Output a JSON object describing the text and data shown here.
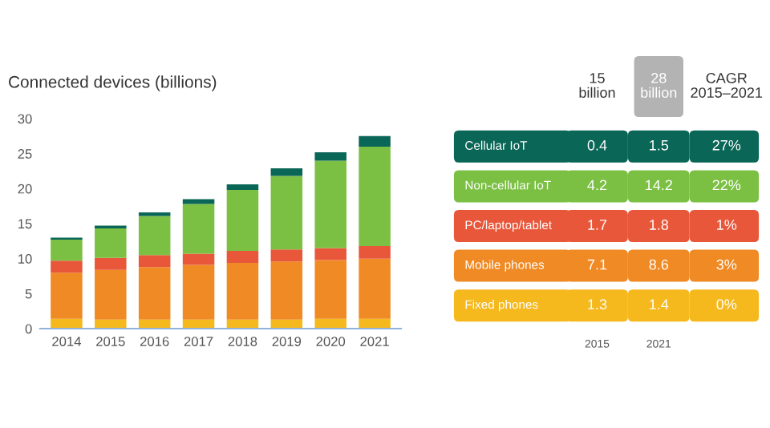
{
  "chart_data": [
    {
      "type": "bar",
      "title": "Connected devices (billions)",
      "stacked": true,
      "categories": [
        "2014",
        "2015",
        "2016",
        "2017",
        "2018",
        "2019",
        "2020",
        "2021"
      ],
      "series": [
        {
          "color": "#f5b91e",
          "values": [
            1.4,
            1.3,
            1.3,
            1.3,
            1.3,
            1.3,
            1.4,
            1.4
          ]
        },
        {
          "color": "#f08a24",
          "values": [
            6.6,
            7.1,
            7.5,
            7.8,
            8.1,
            8.3,
            8.4,
            8.6
          ]
        },
        {
          "color": "#e8573a",
          "values": [
            1.7,
            1.7,
            1.7,
            1.6,
            1.7,
            1.7,
            1.7,
            1.8
          ]
        },
        {
          "color": "#7bc043",
          "values": [
            3.0,
            4.2,
            5.6,
            7.1,
            8.7,
            10.5,
            12.5,
            14.2
          ]
        },
        {
          "color": "#0a6656",
          "values": [
            0.3,
            0.4,
            0.5,
            0.7,
            0.8,
            1.1,
            1.2,
            1.5
          ]
        }
      ],
      "ylim": [
        0,
        30
      ],
      "yticks": [
        0,
        5,
        10,
        15,
        20,
        25,
        30
      ],
      "grid": false,
      "legend": false
    },
    {
      "type": "other",
      "categories": [
        "Cellular IoT",
        "Non-cellular IoT",
        "PC/laptop/tablet",
        "Mobile phones",
        "Fixed phones"
      ],
      "colors": [
        "#0a6656",
        "#7bc043",
        "#e8573a",
        "#f08a24",
        "#f5b91e"
      ],
      "series": [
        {
          "name": "2015",
          "colors": [
            "#0a6656",
            "#7bc043",
            "#e8573a",
            "#f08a24",
            "#f5b91e"
          ],
          "values": [
            0.4,
            4.2,
            1.7,
            7.1,
            1.3
          ]
        },
        {
          "name": "2021",
          "colors": [
            "#0a6656",
            "#7bc043",
            "#e8573a",
            "#f08a24",
            "#f5b91e"
          ],
          "values": [
            1.5,
            14.2,
            1.8,
            8.6,
            1.4
          ]
        },
        {
          "colors": [
            "#0a6656",
            "#7bc043",
            "#e8573a",
            "#f08a24",
            "#f5b91e"
          ],
          "values": [
            27,
            22,
            1,
            3,
            0
          ],
          "value_labels": [
            "27%",
            "22%",
            "1%",
            "3%",
            "0%"
          ]
        }
      ],
      "annotations": [
        "15\nbillion",
        "28\nbillion",
        "CAGR\n2015–2021"
      ],
      "data_labels": true
    }
  ]
}
